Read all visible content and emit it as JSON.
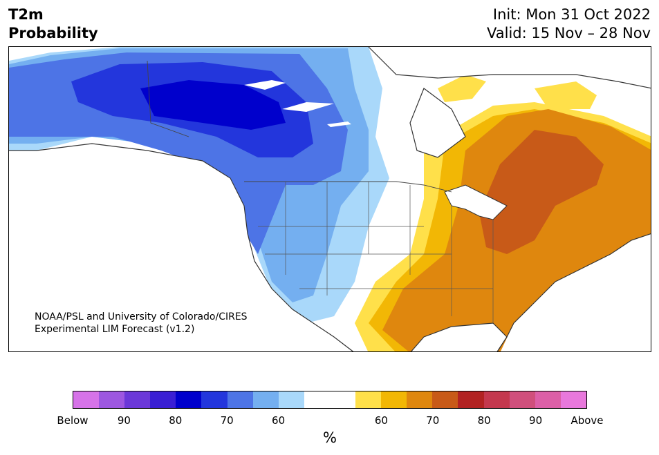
{
  "header": {
    "title_line1": "T2m",
    "title_line2": "Probability",
    "init": "Init: Mon 31 Oct 2022",
    "valid": "Valid: 15 Nov – 28 Nov"
  },
  "credit": {
    "line1": "NOAA/PSL and University of Colorado/CIRES",
    "line2": "Experimental LIM Forecast (v1.2)"
  },
  "colorbar": {
    "colors": [
      "#d673e8",
      "#9d57e0",
      "#6b38d8",
      "#3a1fd4",
      "#0000cc",
      "#2336dc",
      "#4d74e6",
      "#74aff0",
      "#a9d8fa",
      "#ffffff",
      "#ffffff",
      "#ffe04a",
      "#f2b705",
      "#df870e",
      "#c85a18",
      "#b22222",
      "#c4384e",
      "#d04f7c",
      "#dc5fa7",
      "#e878dc"
    ],
    "labels": [
      "Below",
      "90",
      "80",
      "70",
      "60",
      "60",
      "70",
      "80",
      "90",
      "Above"
    ],
    "unit": "%"
  },
  "legend_colors": {
    "cold_strong": "#0000cc",
    "cold_mid": "#2336dc",
    "cold_light": "#4d74e6",
    "cold_pale": "#74aff0",
    "cold_palest": "#a9d8fa",
    "warm_pale": "#ffe04a",
    "warm_light": "#f2b705",
    "warm_mid": "#df870e",
    "warm_strong": "#c85a18"
  }
}
